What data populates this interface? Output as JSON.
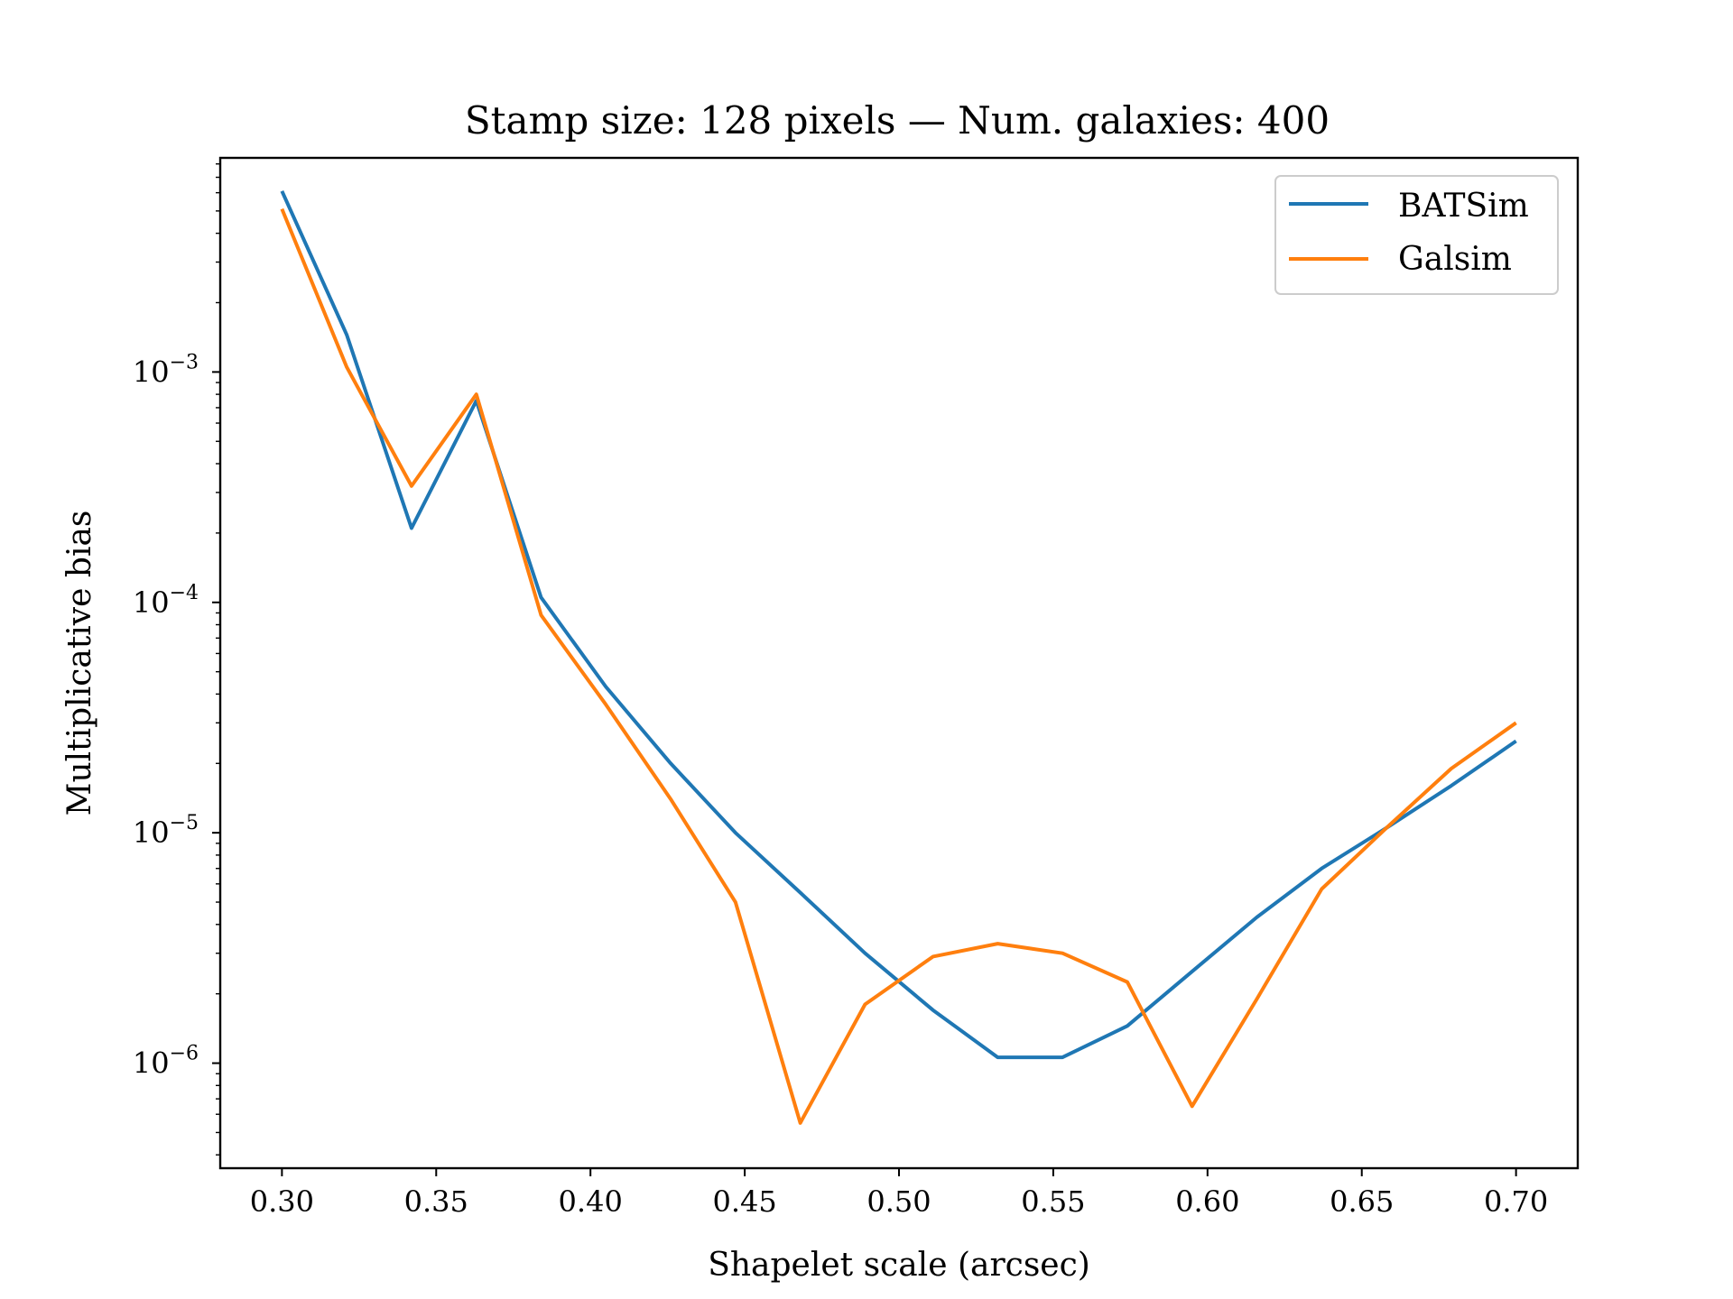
{
  "chart_data": {
    "type": "line",
    "title": "Stamp size: 128 pixels — Num. galaxies: 400",
    "xlabel": "Shapelet scale (arcsec)",
    "ylabel": "Multiplicative bias",
    "yscale": "log",
    "xlim": [
      0.28,
      0.72
    ],
    "ylim": [
      3.5e-07,
      0.0085
    ],
    "grid": false,
    "legend_position": "top-right",
    "xticks": [
      0.3,
      0.35,
      0.4,
      0.45,
      0.5,
      0.55,
      0.6,
      0.65,
      0.7
    ],
    "xtick_labels": [
      "0.30",
      "0.35",
      "0.40",
      "0.45",
      "0.50",
      "0.55",
      "0.60",
      "0.65",
      "0.70"
    ],
    "yticks": [
      1e-06,
      1e-05,
      0.0001,
      0.001
    ],
    "ytick_labels": [
      {
        "base": "10",
        "exp": "−6"
      },
      {
        "base": "10",
        "exp": "−5"
      },
      {
        "base": "10",
        "exp": "−4"
      },
      {
        "base": "10",
        "exp": "−3"
      }
    ],
    "x": [
      0.3,
      0.321,
      0.342,
      0.363,
      0.384,
      0.405,
      0.426,
      0.447,
      0.468,
      0.489,
      0.511,
      0.532,
      0.553,
      0.574,
      0.595,
      0.616,
      0.637,
      0.658,
      0.679,
      0.7
    ],
    "series": [
      {
        "name": "BATSim",
        "color": "#1f77b4",
        "values": [
          0.0061,
          0.00145,
          0.00021,
          0.00075,
          0.000105,
          4.3e-05,
          2e-05,
          1e-05,
          5.5e-06,
          3e-06,
          1.7e-06,
          1.06e-06,
          1.06e-06,
          1.45e-06,
          2.5e-06,
          4.3e-06,
          7e-06,
          1.05e-05,
          1.6e-05,
          2.5e-05
        ]
      },
      {
        "name": "Galsim",
        "color": "#ff7f0e",
        "values": [
          0.0051,
          0.00105,
          0.00032,
          0.0008,
          8.8e-05,
          3.6e-05,
          1.4e-05,
          5e-06,
          5.5e-07,
          1.8e-06,
          2.9e-06,
          3.3e-06,
          3e-06,
          2.25e-06,
          6.5e-07,
          1.9e-06,
          5.7e-06,
          1.05e-05,
          1.9e-05,
          3e-05
        ]
      }
    ]
  }
}
